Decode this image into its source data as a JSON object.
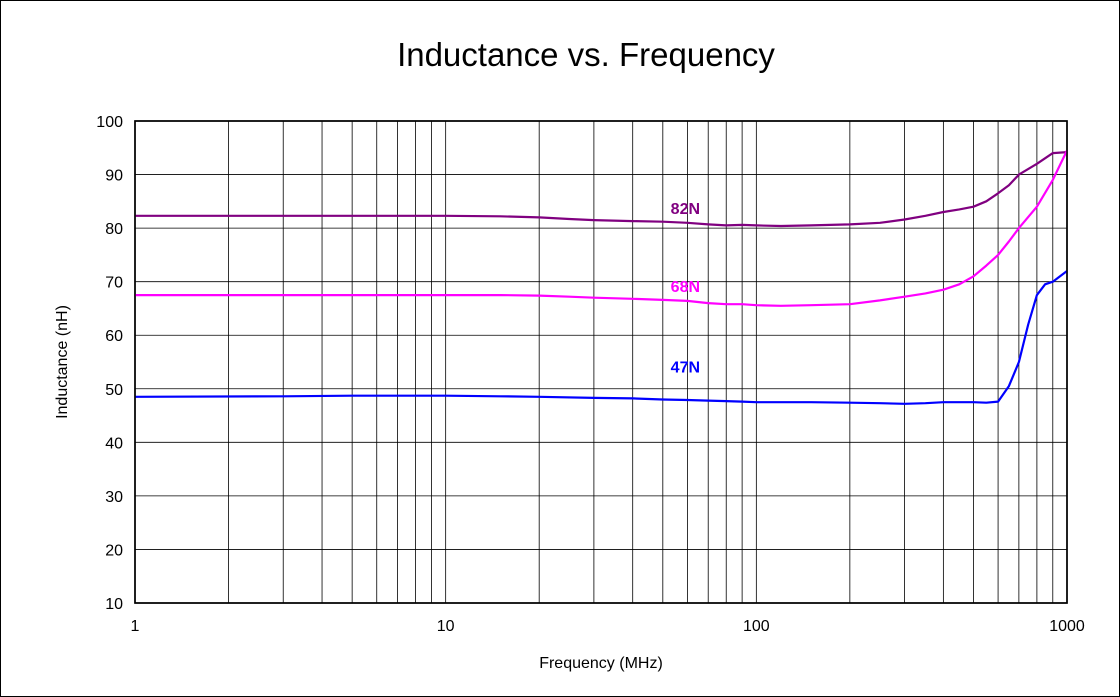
{
  "chart_data": {
    "type": "line",
    "title": "Inductance vs. Frequency",
    "xlabel": "Frequency (MHz)",
    "ylabel": "Inductance (nH)",
    "x_scale": "log",
    "xlim": [
      1,
      1000
    ],
    "ylim": [
      10,
      100
    ],
    "x_ticks": [
      1,
      10,
      100,
      1000
    ],
    "y_ticks": [
      10,
      20,
      30,
      40,
      50,
      60,
      70,
      80,
      90,
      100
    ],
    "grid": true,
    "legend": "none",
    "series": [
      {
        "name": "82N",
        "color": "#800080",
        "x": [
          1,
          2,
          5,
          10,
          15,
          20,
          25,
          30,
          40,
          50,
          60,
          70,
          80,
          90,
          100,
          120,
          150,
          200,
          250,
          300,
          350,
          400,
          450,
          500,
          550,
          600,
          650,
          700,
          800,
          900,
          1000
        ],
        "y": [
          82.3,
          82.3,
          82.3,
          82.3,
          82.2,
          82.0,
          81.7,
          81.5,
          81.3,
          81.2,
          81.0,
          80.7,
          80.5,
          80.6,
          80.5,
          80.4,
          80.5,
          80.7,
          81.0,
          81.6,
          82.3,
          83.0,
          83.5,
          84.0,
          85.0,
          86.5,
          88.0,
          90.0,
          92.0,
          94.0,
          94.2
        ]
      },
      {
        "name": "68N",
        "color": "#FF00FF",
        "x": [
          1,
          5,
          10,
          15,
          20,
          25,
          30,
          40,
          50,
          60,
          70,
          80,
          90,
          100,
          120,
          150,
          200,
          250,
          300,
          350,
          400,
          450,
          500,
          550,
          600,
          650,
          700,
          800,
          900,
          1000
        ],
        "y": [
          67.5,
          67.5,
          67.5,
          67.5,
          67.4,
          67.2,
          67.0,
          66.8,
          66.6,
          66.4,
          66.0,
          65.8,
          65.8,
          65.6,
          65.5,
          65.6,
          65.8,
          66.5,
          67.2,
          67.8,
          68.5,
          69.5,
          71.0,
          73.0,
          75.0,
          77.5,
          80.0,
          84.0,
          89.0,
          94.5
        ]
      },
      {
        "name": "47N",
        "color": "#0000FF",
        "x": [
          1,
          3,
          5,
          10,
          15,
          20,
          30,
          40,
          50,
          60,
          70,
          80,
          90,
          100,
          150,
          200,
          250,
          300,
          350,
          400,
          450,
          500,
          550,
          600,
          650,
          700,
          750,
          800,
          850,
          900,
          1000
        ],
        "y": [
          48.5,
          48.6,
          48.7,
          48.7,
          48.6,
          48.5,
          48.3,
          48.2,
          48.0,
          47.9,
          47.8,
          47.7,
          47.6,
          47.5,
          47.5,
          47.4,
          47.3,
          47.2,
          47.3,
          47.5,
          47.5,
          47.5,
          47.4,
          47.6,
          50.5,
          55.0,
          62.0,
          67.5,
          69.5,
          70.0,
          72.0
        ]
      }
    ]
  }
}
